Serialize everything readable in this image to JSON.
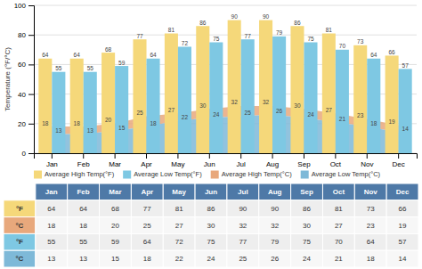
{
  "chart_data": [
    {
      "type": "bar",
      "y_label": "Temperature (°F/°C)",
      "categories": [
        "Jan",
        "Feb",
        "Mar",
        "Apr",
        "May",
        "Jun",
        "Jul",
        "Aug",
        "Sep",
        "Oct",
        "Nov",
        "Dec"
      ],
      "series": [
        {
          "name": "Average High Temp(°F)",
          "type": "bar",
          "color": "#F5D87A",
          "values": [
            64,
            64,
            68,
            77,
            81,
            86,
            90,
            90,
            86,
            81,
            73,
            66
          ]
        },
        {
          "name": "Average Low Temp(°F)",
          "type": "bar",
          "color": "#7EC8E3",
          "values": [
            55,
            55,
            59,
            64,
            72,
            75,
            77,
            79,
            75,
            70,
            64,
            57
          ]
        },
        {
          "name": "Average High Temp(°C)",
          "type": "area",
          "color": "#E8A87C",
          "values": [
            18,
            18,
            20,
            25,
            27,
            30,
            32,
            32,
            30,
            27,
            23,
            19
          ]
        },
        {
          "name": "Average Low Temp(°C)",
          "type": "area",
          "color": "#7EB9D8",
          "values": [
            13,
            13,
            15,
            18,
            22,
            24,
            25,
            26,
            24,
            21,
            18,
            14
          ]
        }
      ],
      "ylim": [
        0,
        100
      ],
      "yticks": [
        0,
        20,
        40,
        60,
        80,
        100
      ],
      "grid": true,
      "data_labels": true,
      "legend": "bottom"
    },
    {
      "type": "table",
      "categories": [
        "Jan",
        "Feb",
        "Mar",
        "Apr",
        "May",
        "Jun",
        "Jul",
        "Aug",
        "Sep",
        "Oct",
        "Nov",
        "Dec"
      ],
      "series": [
        {
          "name": "°F",
          "color": "#F5D87A",
          "values": [
            64,
            64,
            68,
            77,
            81,
            86,
            90,
            90,
            86,
            81,
            73,
            66
          ]
        },
        {
          "name": "°C",
          "color": "#E8A87C",
          "values": [
            18,
            18,
            20,
            25,
            27,
            30,
            32,
            32,
            30,
            27,
            23,
            19
          ]
        },
        {
          "name": "°F",
          "color": "#7EC8E3",
          "values": [
            55,
            55,
            59,
            64,
            72,
            75,
            77,
            79,
            75,
            70,
            64,
            57
          ]
        },
        {
          "name": "°C",
          "color": "#7EB9D8",
          "values": [
            13,
            13,
            15,
            18,
            22,
            24,
            25,
            26,
            24,
            21,
            18,
            14
          ]
        }
      ]
    }
  ]
}
